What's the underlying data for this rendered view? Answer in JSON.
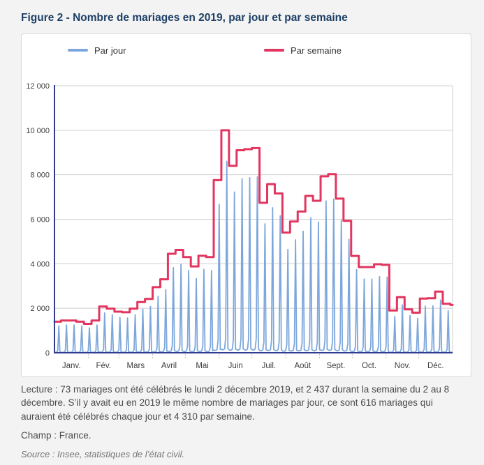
{
  "title": "Figure 2 - Nombre de mariages en 2019, par jour et par semaine",
  "legend": {
    "items": [
      {
        "label": "Par jour",
        "color": "#7da7dc"
      },
      {
        "label": "Par semaine",
        "color": "#e2355f"
      }
    ]
  },
  "colors": {
    "page_background": "#f3f3f4",
    "card_background": "#ffffff",
    "card_border": "#d9d9d9",
    "title": "#1e4066",
    "axis": "#333b90",
    "gridline": "#cfcfcf",
    "tick_label": "#3d3d3d",
    "daily_line": "#7da7dc",
    "weekly_line": "#e2355f"
  },
  "chart_data": {
    "type": "line",
    "title": "Nombre de mariages en 2019, par jour et par semaine",
    "xlabel": "",
    "ylabel": "",
    "ylim": [
      0,
      12000
    ],
    "grid": "horizontal",
    "legend_position": "top",
    "y_ticks": [
      0,
      2000,
      4000,
      6000,
      8000,
      10000,
      12000
    ],
    "y_tick_labels": [
      "0",
      "2 000",
      "4 000",
      "6 000",
      "8 000",
      "10 000",
      "12 000"
    ],
    "x_tick_labels": [
      "Janv.",
      "Fév.",
      "Mars",
      "Avril",
      "Mai",
      "Juin",
      "Juil.",
      "Août",
      "Sept.",
      "Oct.",
      "Nov.",
      "Déc."
    ],
    "days_per_month": [
      31,
      28,
      31,
      30,
      31,
      30,
      31,
      31,
      30,
      31,
      30,
      31
    ],
    "series": [
      {
        "name": "Par semaine",
        "type": "step",
        "unit": "mariages par semaine",
        "first_week_start_day_index": -1,
        "week_start_labels": [
          "31 déc.",
          "7 janv.",
          "14 janv.",
          "21 janv.",
          "28 janv.",
          "4 févr.",
          "11 févr.",
          "18 févr.",
          "25 févr.",
          "4 mars",
          "11 mars",
          "18 mars",
          "25 mars",
          "1 avr.",
          "8 avr.",
          "15 avr.",
          "22 avr.",
          "29 avr.",
          "6 mai",
          "13 mai",
          "20 mai",
          "27 mai",
          "3 juin",
          "10 juin",
          "17 juin",
          "24 juin",
          "1 juil.",
          "8 juil.",
          "15 juil.",
          "22 juil.",
          "29 juil.",
          "5 août",
          "12 août",
          "19 août",
          "26 août",
          "2 sept.",
          "9 sept.",
          "16 sept.",
          "23 sept.",
          "30 sept.",
          "7 oct.",
          "14 oct.",
          "21 oct.",
          "28 oct.",
          "4 nov.",
          "11 nov.",
          "18 nov.",
          "25 nov.",
          "2 déc.",
          "9 déc.",
          "16 déc.",
          "23 déc.",
          "30 déc."
        ],
        "values": [
          1400,
          1450,
          1450,
          1400,
          1300,
          1450,
          2080,
          1980,
          1850,
          1820,
          1980,
          2280,
          2420,
          2950,
          3300,
          4450,
          4620,
          4300,
          3880,
          4360,
          4300,
          7760,
          10000,
          8400,
          9100,
          9150,
          9200,
          6740,
          7580,
          7160,
          5400,
          5900,
          6350,
          7050,
          6830,
          7930,
          8030,
          6930,
          5930,
          4350,
          3850,
          3850,
          3980,
          3950,
          1900,
          2500,
          1950,
          1800,
          2437,
          2450,
          2750,
          2200,
          2150
        ]
      },
      {
        "name": "Par jour",
        "type": "line",
        "unit": "mariages par jour",
        "note": "365 points (1 janv. - 31 déc. 2019) ; pics hebdomadaires le samedi, creux en semaine ; valeurs journalières dérivées des totaux hebdomadaires",
        "weekday_share_of_week": {
          "mon": 0.016,
          "tue": 0.013,
          "wed": 0.014,
          "thu": 0.018,
          "fri": 0.07,
          "sat": 0.86,
          "sun": 0.02
        },
        "jan1_weekday": "tue",
        "max_daily_peak_approx": 8600,
        "winter_saturday_peak_approx": 1250
      }
    ]
  },
  "footer": {
    "lecture": "Lecture : 73 mariages ont été célébrés le lundi 2 décembre 2019, et 2 437 durant la semaine du 2 au 8 décembre. S’il y avait eu en 2019 le même nombre de mariages par jour, ce sont 616 mariages qui auraient été célébrés chaque jour et 4 310 par semaine.",
    "champ": "Champ : France.",
    "source": "Source : Insee, statistiques de l’état civil."
  }
}
